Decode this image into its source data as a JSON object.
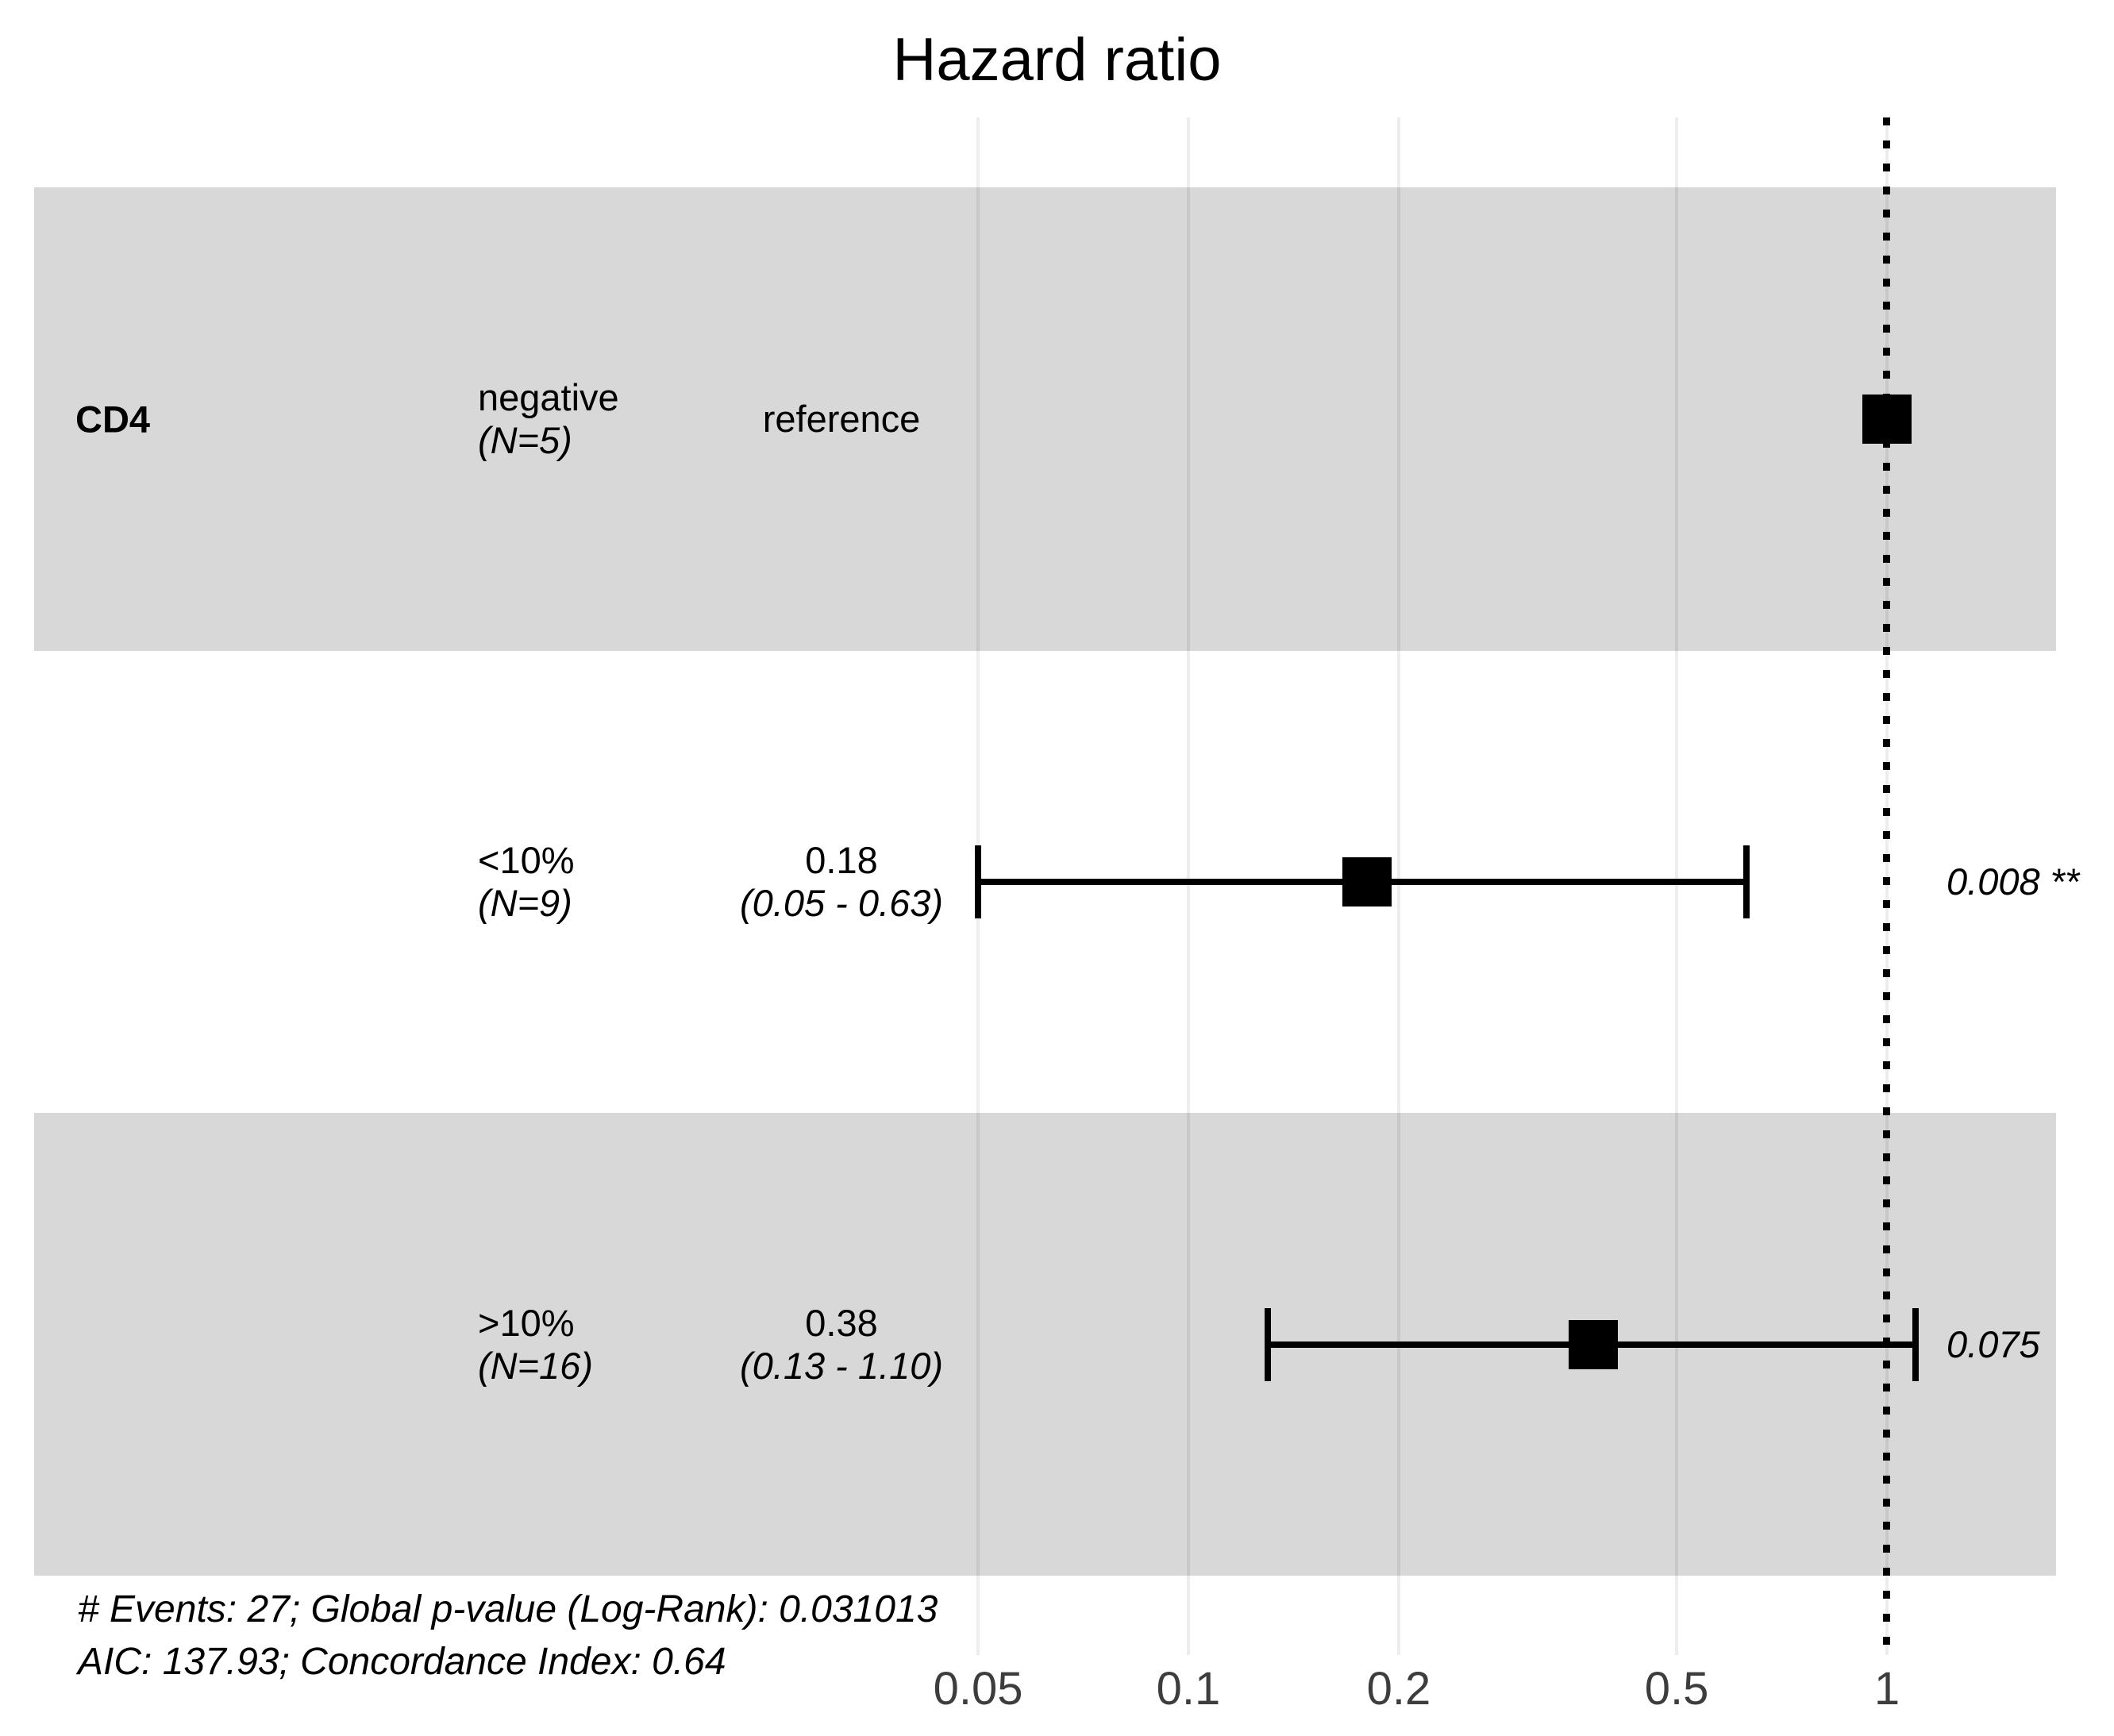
{
  "title": "Hazard ratio",
  "chart_data": {
    "type": "scatter",
    "subtype": "forest-plot",
    "title": "Hazard ratio",
    "variable": "CD4",
    "x_scale": "log10",
    "x_ticks": [
      0.05,
      0.1,
      0.2,
      0.5,
      1
    ],
    "x_tick_labels": [
      "0.05",
      "0.1",
      "0.2",
      "0.5",
      "1"
    ],
    "x_range": [
      0.04,
      1.4
    ],
    "reference_line": 1,
    "grid": "vertical-only",
    "rows": [
      {
        "level": "negative",
        "n": 5,
        "n_label": "(N=5)",
        "hr": 1,
        "ci_low": null,
        "ci_high": null,
        "estimate_label": "reference",
        "ci_label": "",
        "p_label": ""
      },
      {
        "level": "<10%",
        "n": 9,
        "n_label": "(N=9)",
        "hr": 0.18,
        "ci_low": 0.05,
        "ci_high": 0.63,
        "estimate_label": "0.18",
        "ci_label": "(0.05 - 0.63)",
        "p_label": "0.008 **"
      },
      {
        "level": ">10%",
        "n": 16,
        "n_label": "(N=16)",
        "hr": 0.38,
        "ci_low": 0.13,
        "ci_high": 1.1,
        "estimate_label": "0.38",
        "ci_label": "(0.13 - 1.10)",
        "p_label": "0.075"
      }
    ],
    "footnotes": [
      "# Events: 27; Global p-value (Log-Rank): 0.031013",
      "AIC: 137.93; Concordance Index: 0.64"
    ],
    "colors": {
      "stripe": "#d8d8d8",
      "marker": "#000000",
      "grid_alpha": "rgba(0,0,0,0.07)",
      "axis_text": "#3d3d3d"
    }
  }
}
